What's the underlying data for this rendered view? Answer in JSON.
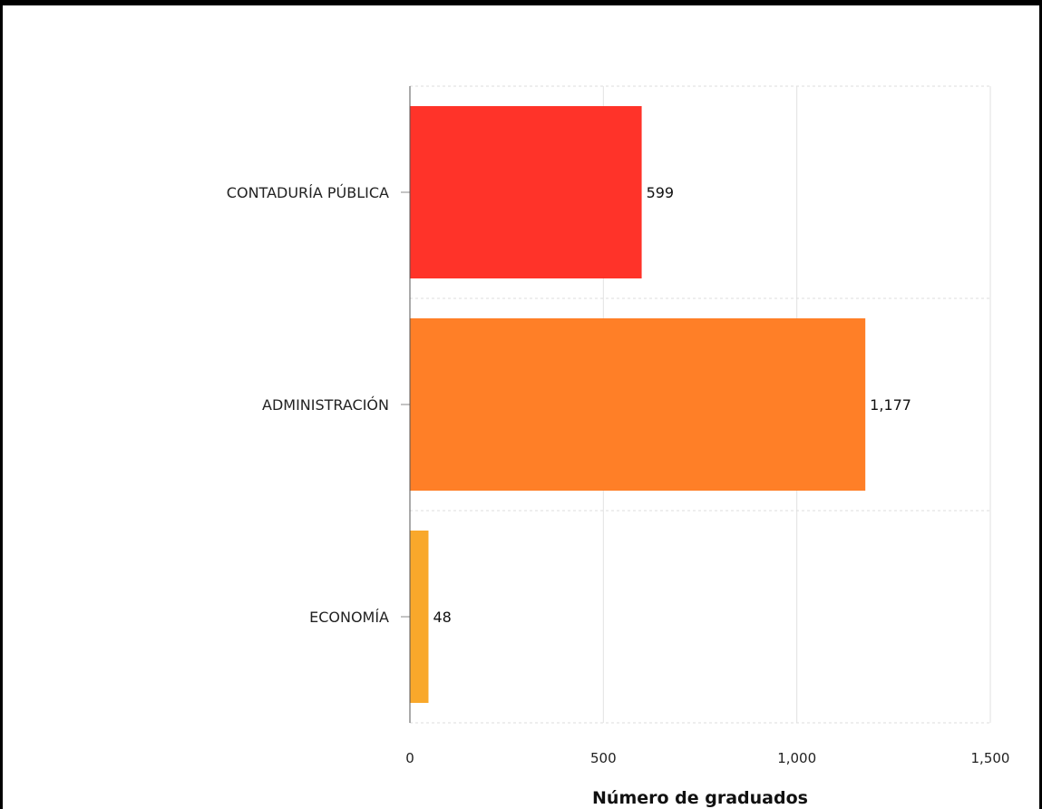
{
  "chart_data": {
    "type": "bar",
    "orientation": "horizontal",
    "categories": [
      "CONTADURÍA PÚBLICA",
      "ADMINISTRACIÓN",
      "ECONOMÍA"
    ],
    "values": [
      599,
      1177,
      48
    ],
    "value_labels": [
      "599",
      "1,177",
      "48"
    ],
    "colors": [
      "#ff3329",
      "#ff7f27",
      "#f9a82b"
    ],
    "xlabel": "Número de graduados",
    "ylabel": "",
    "xlim": [
      0,
      1500
    ],
    "x_ticks": [
      0,
      500,
      1000,
      1500
    ],
    "x_tick_labels": [
      "0",
      "500",
      "1,000",
      "1,500"
    ],
    "grid": true,
    "legend": "none"
  }
}
